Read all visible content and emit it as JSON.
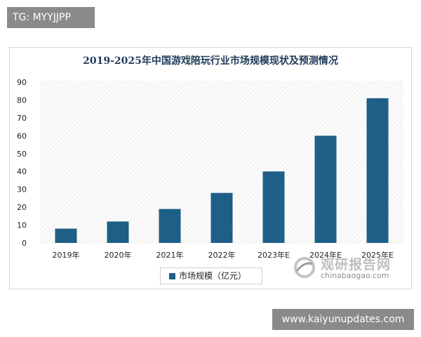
{
  "tag_top": "TG: MYYJJPP",
  "tag_bottom": "www.kaiyunupdates.com",
  "watermark": {
    "title": "观研报告网",
    "site": "chinabaogao.com"
  },
  "colors": {
    "bar": "#1d5f87",
    "axis_text": "#222222",
    "title": "#1f3b5a"
  },
  "chart_data": {
    "type": "bar",
    "title": "2019-2025年中国游戏陪玩行业市场规模现状及预测情况",
    "categories": [
      "2019年",
      "2020年",
      "2021年",
      "2022年",
      "2023年E",
      "2024年E",
      "2025年E"
    ],
    "series": [
      {
        "name": "市场规模（亿元）",
        "values": [
          8,
          12,
          19,
          28,
          40,
          60,
          81
        ]
      }
    ],
    "yticks": [
      0,
      10,
      20,
      30,
      40,
      50,
      60,
      70,
      80,
      90
    ],
    "ylim": [
      0,
      90
    ],
    "grid": false,
    "legend": "bottom"
  }
}
